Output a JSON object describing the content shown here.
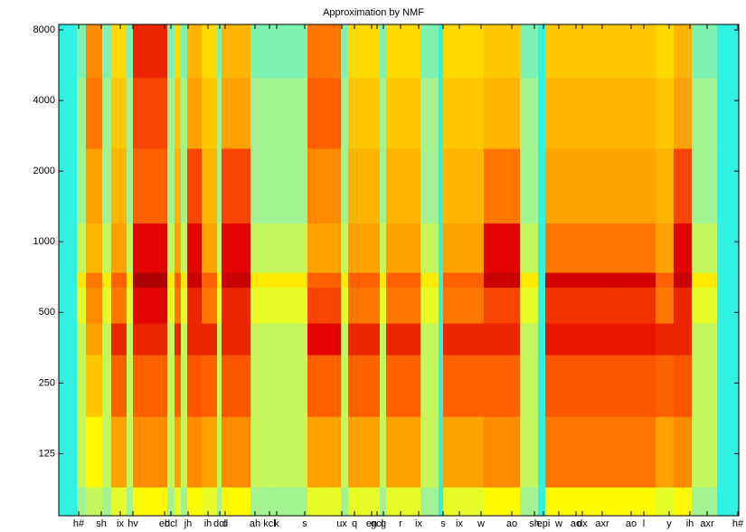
{
  "chart_data": {
    "type": "heatmap",
    "title": "Approximation by NMF",
    "log_y": true,
    "xlim": [
      0,
      752
    ],
    "ylim": [
      68,
      8440
    ],
    "yticks": [
      125,
      250,
      500,
      1000,
      2000,
      4000,
      8000
    ],
    "xticks": [
      {
        "value": 22,
        "label": "h#"
      },
      {
        "value": 47,
        "label": "sh"
      },
      {
        "value": 68,
        "label": "ix"
      },
      {
        "value": 82,
        "label": "hv"
      },
      {
        "value": 117,
        "label": "eh"
      },
      {
        "value": 124,
        "label": "dcl"
      },
      {
        "value": 143,
        "label": "jh"
      },
      {
        "value": 165,
        "label": "ih"
      },
      {
        "value": 178,
        "label": "dcl"
      },
      {
        "value": 184,
        "label": "d"
      },
      {
        "value": 217,
        "label": "ah"
      },
      {
        "value": 233,
        "label": "kcl"
      },
      {
        "value": 241,
        "label": "k"
      },
      {
        "value": 272,
        "label": "s"
      },
      {
        "value": 313,
        "label": "ux"
      },
      {
        "value": 327,
        "label": "q"
      },
      {
        "value": 346,
        "label": "en"
      },
      {
        "value": 352,
        "label": "gcl"
      },
      {
        "value": 359,
        "label": "g"
      },
      {
        "value": 378,
        "label": "r"
      },
      {
        "value": 398,
        "label": "ix"
      },
      {
        "value": 425,
        "label": "s"
      },
      {
        "value": 443,
        "label": "ix"
      },
      {
        "value": 467,
        "label": "w"
      },
      {
        "value": 501,
        "label": "ao"
      },
      {
        "value": 526,
        "label": "sh"
      },
      {
        "value": 536,
        "label": "epi"
      },
      {
        "value": 553,
        "label": "w"
      },
      {
        "value": 572,
        "label": "ao"
      },
      {
        "value": 579,
        "label": "dx"
      },
      {
        "value": 601,
        "label": "axr"
      },
      {
        "value": 633,
        "label": "ao"
      },
      {
        "value": 647,
        "label": "l"
      },
      {
        "value": 675,
        "label": "y"
      },
      {
        "value": 698,
        "label": "ih"
      },
      {
        "value": 717,
        "label": "axr"
      },
      {
        "value": 751,
        "label": "h#"
      }
    ],
    "xbins": [
      0,
      20,
      30,
      48,
      58,
      75,
      82,
      120,
      128,
      135,
      142,
      158,
      175,
      180,
      212,
      232,
      238,
      250,
      275,
      312,
      320,
      355,
      362,
      400,
      420,
      425,
      470,
      510,
      530,
      538,
      610,
      660,
      680,
      700,
      728,
      752
    ],
    "ybins": [
      68,
      90,
      180,
      330,
      450,
      640,
      740,
      1200,
      2500,
      5000,
      8440
    ],
    "clim": [
      0,
      1
    ],
    "colormap": [
      "#30f2e2",
      "#9ff29a",
      "#ffff00",
      "#ffd000",
      "#ff9900",
      "#ff5a00",
      "#e00000",
      "#900000"
    ],
    "values": [
      [
        0,
        0.15,
        0.2,
        0.15,
        0.25,
        0.15,
        0.3,
        0.15,
        0.25,
        0.15,
        0.3,
        0.25,
        0.15,
        0.3,
        0.15,
        0.15,
        0.15,
        0.15,
        0.25,
        0.15,
        0.25,
        0.15,
        0.25,
        0.15,
        0,
        0.25,
        0.3,
        0.15,
        0,
        0.3,
        0.3,
        0.25,
        0.3,
        0.15,
        0
      ],
      [
        0,
        0.2,
        0.3,
        0.2,
        0.55,
        0.2,
        0.6,
        0.2,
        0.55,
        0.2,
        0.6,
        0.55,
        0.2,
        0.6,
        0.2,
        0.2,
        0.2,
        0.2,
        0.55,
        0.2,
        0.55,
        0.2,
        0.55,
        0.2,
        0,
        0.55,
        0.6,
        0.2,
        0,
        0.65,
        0.65,
        0.55,
        0.6,
        0.2,
        0
      ],
      [
        0,
        0.2,
        0.45,
        0.2,
        0.7,
        0.2,
        0.7,
        0.2,
        0.7,
        0.2,
        0.72,
        0.7,
        0.2,
        0.72,
        0.2,
        0.2,
        0.2,
        0.2,
        0.7,
        0.2,
        0.7,
        0.2,
        0.7,
        0.2,
        0,
        0.7,
        0.7,
        0.2,
        0,
        0.72,
        0.72,
        0.7,
        0.72,
        0.2,
        0
      ],
      [
        0,
        0.2,
        0.55,
        0.2,
        0.8,
        0.2,
        0.8,
        0.2,
        0.8,
        0.2,
        0.8,
        0.8,
        0.2,
        0.8,
        0.2,
        0.2,
        0.2,
        0.2,
        0.85,
        0.2,
        0.8,
        0.2,
        0.8,
        0.2,
        0,
        0.8,
        0.8,
        0.2,
        0,
        0.82,
        0.82,
        0.8,
        0.8,
        0.2,
        0
      ],
      [
        0,
        0.25,
        0.6,
        0.25,
        0.65,
        0.25,
        0.85,
        0.25,
        0.65,
        0.25,
        0.8,
        0.65,
        0.25,
        0.8,
        0.25,
        0.25,
        0.25,
        0.25,
        0.75,
        0.25,
        0.65,
        0.25,
        0.65,
        0.25,
        0,
        0.65,
        0.75,
        0.25,
        0,
        0.78,
        0.78,
        0.65,
        0.8,
        0.25,
        0
      ],
      [
        0,
        0.35,
        0.65,
        0.35,
        0.7,
        0.35,
        0.95,
        0.35,
        0.7,
        0.35,
        0.9,
        0.7,
        0.35,
        0.9,
        0.35,
        0.35,
        0.35,
        0.35,
        0.7,
        0.35,
        0.7,
        0.35,
        0.7,
        0.35,
        0,
        0.7,
        0.9,
        0.35,
        0,
        0.88,
        0.88,
        0.7,
        0.9,
        0.35,
        0
      ],
      [
        0,
        0.2,
        0.5,
        0.2,
        0.55,
        0.2,
        0.85,
        0.2,
        0.55,
        0.2,
        0.85,
        0.55,
        0.2,
        0.85,
        0.2,
        0.2,
        0.2,
        0.2,
        0.55,
        0.2,
        0.55,
        0.2,
        0.55,
        0.2,
        0,
        0.55,
        0.85,
        0.2,
        0,
        0.65,
        0.65,
        0.55,
        0.85,
        0.2,
        0
      ],
      [
        0,
        0.15,
        0.55,
        0.15,
        0.5,
        0.15,
        0.7,
        0.15,
        0.5,
        0.15,
        0.75,
        0.5,
        0.15,
        0.75,
        0.15,
        0.15,
        0.15,
        0.15,
        0.6,
        0.15,
        0.5,
        0.15,
        0.5,
        0.15,
        0,
        0.5,
        0.65,
        0.15,
        0,
        0.55,
        0.55,
        0.5,
        0.75,
        0.15,
        0
      ],
      [
        0,
        0.15,
        0.65,
        0.15,
        0.45,
        0.15,
        0.75,
        0.15,
        0.45,
        0.15,
        0.55,
        0.45,
        0.15,
        0.55,
        0.15,
        0.15,
        0.15,
        0.15,
        0.7,
        0.15,
        0.45,
        0.15,
        0.45,
        0.15,
        0,
        0.45,
        0.5,
        0.15,
        0,
        0.5,
        0.5,
        0.45,
        0.55,
        0.15,
        0
      ],
      [
        0,
        0.1,
        0.6,
        0.1,
        0.4,
        0.1,
        0.8,
        0.1,
        0.4,
        0.1,
        0.5,
        0.4,
        0.1,
        0.5,
        0.1,
        0.1,
        0.1,
        0.1,
        0.65,
        0.1,
        0.4,
        0.1,
        0.4,
        0.1,
        0,
        0.4,
        0.45,
        0.1,
        0,
        0.45,
        0.45,
        0.4,
        0.5,
        0.1,
        0
      ]
    ]
  }
}
